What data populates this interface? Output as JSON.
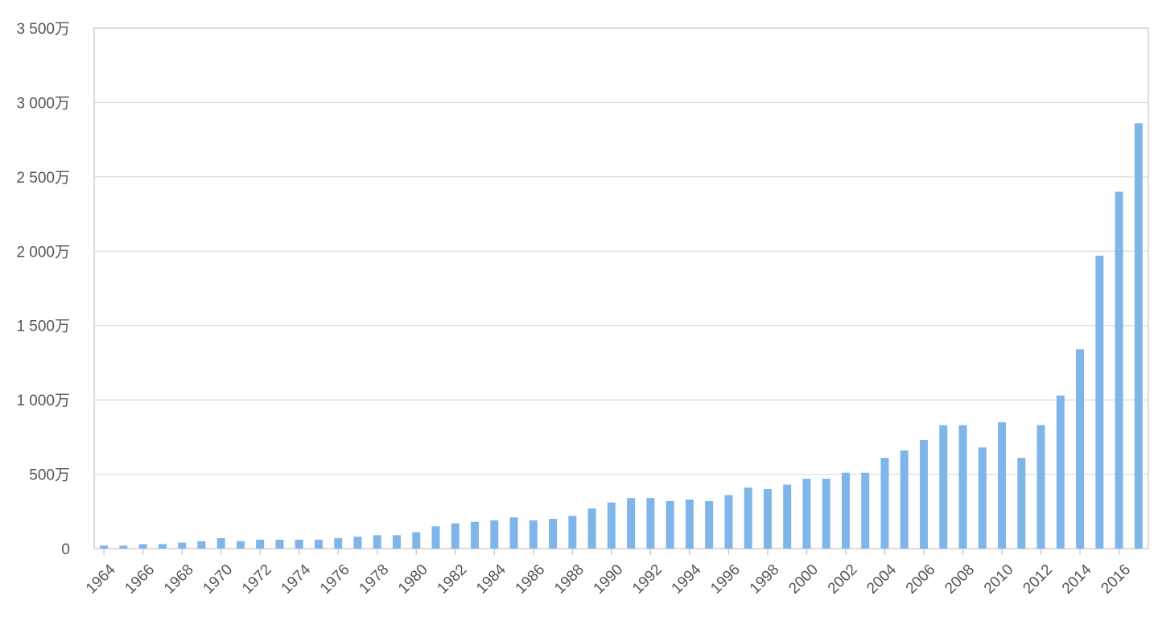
{
  "chart_data": {
    "type": "bar",
    "title": "",
    "xlabel": "",
    "ylabel": "",
    "ylim": [
      0,
      35000000
    ],
    "yticks": [
      {
        "value": 0,
        "label": "0"
      },
      {
        "value": 5000000,
        "label": "500万"
      },
      {
        "value": 10000000,
        "label": "1 000万"
      },
      {
        "value": 15000000,
        "label": "1 500万"
      },
      {
        "value": 20000000,
        "label": "2 000万"
      },
      {
        "value": 25000000,
        "label": "2 500万"
      },
      {
        "value": 30000000,
        "label": "3 000万"
      },
      {
        "value": 35000000,
        "label": "3 500万"
      }
    ],
    "grid": true,
    "legend": "none",
    "colors": {
      "bar": "#7fb5e8",
      "grid": "#dcdcdc",
      "frame": "#cccccc",
      "tick_text": "#555555"
    },
    "x_tick_labels": [
      "1964",
      "1966",
      "1968",
      "1970",
      "1972",
      "1974",
      "1976",
      "1978",
      "1980",
      "1982",
      "1984",
      "1986",
      "1988",
      "1990",
      "1992",
      "1994",
      "1996",
      "1998",
      "2000",
      "2002",
      "2004",
      "2006",
      "2008",
      "2010",
      "2012",
      "2014",
      "2016"
    ],
    "categories": [
      "1964",
      "1965",
      "1966",
      "1967",
      "1968",
      "1969",
      "1970",
      "1971",
      "1972",
      "1973",
      "1974",
      "1975",
      "1976",
      "1977",
      "1978",
      "1979",
      "1980",
      "1981",
      "1982",
      "1983",
      "1984",
      "1985",
      "1986",
      "1987",
      "1988",
      "1989",
      "1990",
      "1991",
      "1992",
      "1993",
      "1994",
      "1995",
      "1996",
      "1997",
      "1998",
      "1999",
      "2000",
      "2001",
      "2002",
      "2003",
      "2004",
      "2005",
      "2006",
      "2007",
      "2008",
      "2009",
      "2010",
      "2011",
      "2012",
      "2013",
      "2014",
      "2015",
      "2016",
      "2017"
    ],
    "values": [
      200000,
      200000,
      300000,
      300000,
      400000,
      500000,
      700000,
      500000,
      600000,
      600000,
      600000,
      600000,
      700000,
      800000,
      900000,
      900000,
      1100000,
      1500000,
      1700000,
      1800000,
      1900000,
      2100000,
      1900000,
      2000000,
      2200000,
      2700000,
      3100000,
      3400000,
      3400000,
      3200000,
      3300000,
      3200000,
      3600000,
      4100000,
      4000000,
      4300000,
      4700000,
      4700000,
      5100000,
      5100000,
      6100000,
      6600000,
      7300000,
      8300000,
      8300000,
      6800000,
      8500000,
      6100000,
      8300000,
      10300000,
      13400000,
      19700000,
      24000000,
      28600000
    ]
  }
}
